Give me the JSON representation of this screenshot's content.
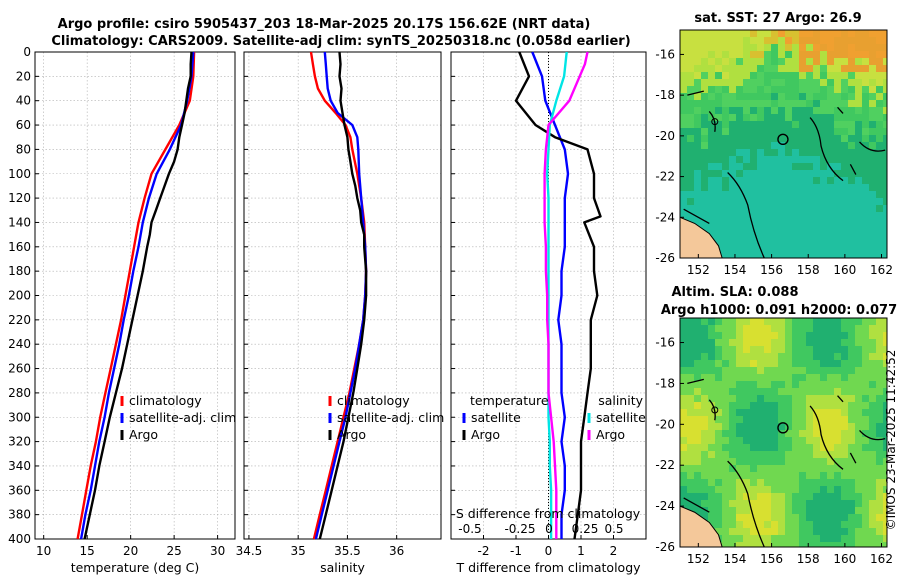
{
  "title": {
    "line1": "Argo profile: csiro 5905437_203 18-Mar-2025 20.17S 156.62E (NRT data)",
    "line2": "Climatology: CARS2009. Satellite-adj clim: synTS_20250318.nc (0.058d earlier)"
  },
  "colors": {
    "climatology": "#ff0000",
    "satellite": "#0000ff",
    "argo": "#000000",
    "salinity_satellite": "#00e5e5",
    "salinity_argo": "#ff00ff",
    "grid": "#b0b0b0",
    "land": "#f4c89a"
  },
  "watermark": "©IMOS 23-Mar-2025 11:42:52",
  "chart_data": [
    {
      "type": "line",
      "id": "temperature",
      "xlabel": "temperature (deg C)",
      "ylabel": "",
      "xlim": [
        9,
        32
      ],
      "ylim": [
        0,
        400
      ],
      "y_reversed": true,
      "grid": true,
      "xticks": [
        10,
        15,
        20,
        25,
        30
      ],
      "yticks": [
        0,
        20,
        40,
        60,
        80,
        100,
        120,
        140,
        160,
        180,
        200,
        220,
        240,
        260,
        280,
        300,
        320,
        340,
        360,
        380,
        400
      ],
      "legend": [
        "climatology",
        "satellite-adj. clim",
        "Argo"
      ],
      "series": [
        {
          "name": "climatology",
          "color": "#ff0000",
          "depth": [
            0,
            20,
            40,
            60,
            80,
            100,
            120,
            140,
            160,
            180,
            200,
            220,
            240,
            260,
            280,
            300,
            320,
            340,
            360,
            380,
            400
          ],
          "values": [
            27.3,
            27.2,
            26.8,
            25.6,
            24.0,
            22.4,
            21.6,
            20.9,
            20.4,
            19.9,
            19.4,
            18.9,
            18.3,
            17.7,
            17.1,
            16.5,
            16.0,
            15.4,
            14.9,
            14.4,
            13.9
          ]
        },
        {
          "name": "satellite-adj. clim",
          "color": "#0000ff",
          "depth": [
            0,
            20,
            40,
            60,
            80,
            100,
            120,
            140,
            160,
            180,
            200,
            220,
            240,
            260,
            280,
            300,
            320,
            340,
            360,
            380,
            400
          ],
          "values": [
            27.2,
            27.0,
            26.5,
            25.8,
            24.5,
            23.0,
            22.1,
            21.4,
            20.9,
            20.3,
            19.8,
            19.2,
            18.7,
            18.1,
            17.5,
            17.0,
            16.4,
            15.9,
            15.4,
            14.8,
            14.3
          ]
        },
        {
          "name": "Argo",
          "color": "#000000",
          "depth": [
            0,
            10,
            20,
            30,
            40,
            50,
            60,
            70,
            80,
            90,
            100,
            110,
            120,
            130,
            140,
            150,
            160,
            180,
            200,
            220,
            240,
            260,
            280,
            300,
            320,
            340,
            360,
            380,
            400
          ],
          "values": [
            27.0,
            26.9,
            26.9,
            26.6,
            26.4,
            26.2,
            25.9,
            25.6,
            25.4,
            25.0,
            24.4,
            23.9,
            23.4,
            22.9,
            22.4,
            22.2,
            21.9,
            21.4,
            20.8,
            20.2,
            19.6,
            19.0,
            18.3,
            17.6,
            17.0,
            16.4,
            15.9,
            15.3,
            14.7
          ]
        }
      ]
    },
    {
      "type": "line",
      "id": "salinity",
      "xlabel": "salinity",
      "ylabel": "",
      "xlim": [
        34.45,
        36.45
      ],
      "ylim": [
        0,
        400
      ],
      "y_reversed": true,
      "grid": true,
      "xticks": [
        34.5,
        35,
        35.5,
        36
      ],
      "legend": [
        "climatology",
        "satellite-adj. clim",
        "Argo"
      ],
      "series": [
        {
          "name": "climatology",
          "color": "#ff0000",
          "depth": [
            0,
            10,
            20,
            30,
            40,
            50,
            60,
            70,
            80,
            100,
            120,
            140,
            160,
            180,
            200,
            220,
            240,
            260,
            280,
            300,
            320,
            340,
            360,
            380,
            400
          ],
          "values": [
            35.13,
            35.15,
            35.17,
            35.2,
            35.27,
            35.38,
            35.48,
            35.53,
            35.55,
            35.6,
            35.64,
            35.67,
            35.68,
            35.69,
            35.68,
            35.66,
            35.62,
            35.57,
            35.52,
            35.46,
            35.4,
            35.34,
            35.28,
            35.22,
            35.16
          ]
        },
        {
          "name": "satellite-adj. clim",
          "color": "#0000ff",
          "depth": [
            0,
            10,
            20,
            30,
            40,
            50,
            60,
            70,
            80,
            100,
            120,
            140,
            160,
            180,
            200,
            220,
            240,
            260,
            280,
            300,
            320,
            340,
            360,
            380,
            400
          ],
          "values": [
            35.27,
            35.28,
            35.29,
            35.3,
            35.33,
            35.4,
            35.55,
            35.6,
            35.61,
            35.62,
            35.64,
            35.66,
            35.68,
            35.69,
            35.68,
            35.66,
            35.62,
            35.58,
            35.53,
            35.48,
            35.42,
            35.36,
            35.3,
            35.24,
            35.18
          ]
        },
        {
          "name": "Argo",
          "color": "#000000",
          "depth": [
            0,
            10,
            20,
            30,
            40,
            50,
            60,
            70,
            80,
            90,
            100,
            110,
            120,
            130,
            140,
            150,
            160,
            180,
            200,
            220,
            240,
            260,
            280,
            300,
            320,
            340,
            360,
            380,
            400
          ],
          "values": [
            35.42,
            35.43,
            35.42,
            35.44,
            35.43,
            35.45,
            35.47,
            35.5,
            35.51,
            35.53,
            35.55,
            35.58,
            35.6,
            35.63,
            35.64,
            35.67,
            35.67,
            35.69,
            35.69,
            35.67,
            35.64,
            35.6,
            35.56,
            35.51,
            35.46,
            35.4,
            35.34,
            35.28,
            35.22
          ]
        }
      ]
    },
    {
      "type": "line",
      "id": "difference",
      "xlabel": "T difference from climatology",
      "xlabel_top": "S difference from climatology",
      "xlim": [
        -3,
        3
      ],
      "ylim": [
        0,
        400
      ],
      "y_reversed": true,
      "grid": true,
      "xticks": [
        -2,
        -1,
        0,
        1,
        2
      ],
      "xticks_top_values": [
        -0.5,
        -0.25,
        0,
        0.25,
        0.5
      ],
      "xticks_top_labels": [
        "-0.5",
        "-0.25",
        "0",
        "0.25",
        "0.5"
      ],
      "legend_temperature_title": "temperature",
      "legend_salinity_title": "salinity",
      "legend_temperature": [
        "satellite",
        "Argo"
      ],
      "legend_salinity": [
        "satellite",
        "Argo"
      ],
      "series": [
        {
          "name": "T satellite",
          "color": "#0000ff",
          "depth": [
            0,
            20,
            40,
            60,
            80,
            100,
            120,
            140,
            160,
            180,
            200,
            220,
            240,
            260,
            280,
            300,
            320,
            340,
            360,
            380,
            400
          ],
          "values": [
            -0.5,
            -0.2,
            -0.1,
            0.2,
            0.5,
            0.6,
            0.5,
            0.5,
            0.5,
            0.4,
            0.4,
            0.3,
            0.4,
            0.4,
            0.4,
            0.5,
            0.4,
            0.5,
            0.5,
            0.4,
            0.4
          ]
        },
        {
          "name": "T Argo",
          "color": "#000000",
          "depth": [
            0,
            20,
            40,
            60,
            70,
            80,
            100,
            120,
            135,
            140,
            160,
            180,
            200,
            220,
            240,
            260,
            280,
            300,
            320,
            340,
            360,
            380,
            400
          ],
          "values": [
            -0.9,
            -0.6,
            -1.0,
            -0.4,
            0.2,
            1.2,
            1.4,
            1.4,
            1.6,
            1.1,
            1.4,
            1.4,
            1.5,
            1.3,
            1.3,
            1.3,
            1.2,
            1.1,
            1.0,
            1.0,
            1.0,
            0.9,
            0.8
          ]
        },
        {
          "name": "S satellite",
          "color": "#00e5e5",
          "depth": [
            0,
            20,
            40,
            60,
            80,
            100,
            120,
            140,
            160,
            180,
            200,
            220,
            240,
            260,
            280,
            300,
            320,
            340,
            360,
            380,
            400
          ],
          "values": [
            0.14,
            0.12,
            0.06,
            0.01,
            0.0,
            -0.01,
            0.0,
            0.0,
            0.0,
            0.0,
            0.0,
            0.0,
            0.0,
            0.0,
            0.0,
            0.0,
            0.01,
            0.01,
            0.02,
            0.02,
            0.02
          ]
        },
        {
          "name": "S Argo",
          "color": "#ff00ff",
          "depth": [
            0,
            10,
            20,
            40,
            60,
            80,
            100,
            120,
            140,
            160,
            180,
            200,
            220,
            240,
            260,
            280,
            300,
            320,
            340,
            360,
            380,
            400
          ],
          "values": [
            0.3,
            0.28,
            0.24,
            0.16,
            0.0,
            -0.02,
            -0.03,
            -0.03,
            -0.03,
            -0.02,
            -0.02,
            -0.01,
            -0.01,
            0.0,
            0.0,
            0.0,
            0.02,
            0.04,
            0.05,
            0.06,
            0.06,
            0.06
          ]
        }
      ]
    },
    {
      "type": "heatmap",
      "id": "sst_map",
      "title": "sat. SST: 27 Argo: 26.9",
      "xlim": [
        151,
        162.3
      ],
      "ylim": [
        -26,
        -14.8
      ],
      "xticks": [
        152,
        154,
        156,
        158,
        160,
        162
      ],
      "yticks": [
        -16,
        -18,
        -20,
        -22,
        -24,
        -26
      ]
    },
    {
      "type": "heatmap",
      "id": "sla_map",
      "title_line1": "Altim. SLA: 0.088",
      "title_line2": "Argo h1000: 0.091 h2000: 0.077",
      "xlim": [
        151,
        162.3
      ],
      "ylim": [
        -26,
        -14.8
      ],
      "xticks": [
        152,
        154,
        156,
        158,
        160,
        162
      ],
      "yticks": [
        -16,
        -18,
        -20,
        -22,
        -24,
        -26
      ]
    }
  ]
}
